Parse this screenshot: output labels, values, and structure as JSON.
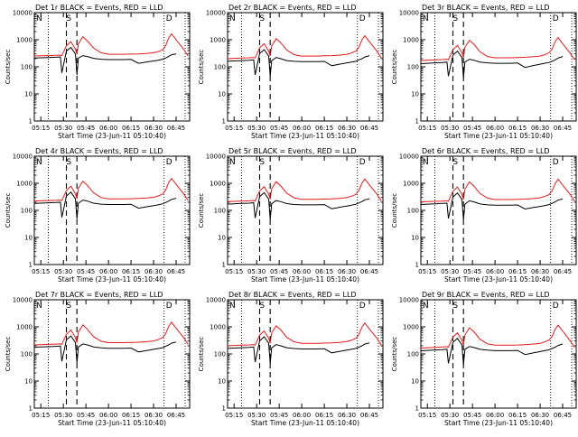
{
  "colors": {
    "events": "#000000",
    "lld": "#e41a1c",
    "axes": "#000000",
    "background": "#ffffff"
  },
  "common": {
    "xlabel": "Start Time (23-Jun-11 05:10:40)",
    "ylabel": "Counts/sec",
    "xticks": [
      "05:15",
      "05:30",
      "05:45",
      "06:00",
      "06:15",
      "06:30",
      "06:45"
    ],
    "yticks": [
      "1",
      "10",
      "100",
      "1000",
      "10000"
    ],
    "marker_S": "S",
    "marker_N": "N",
    "marker_D": "D"
  },
  "chart_data": [
    {
      "type": "line",
      "title": "Det 1r BLACK = Events, RED = LLD",
      "yscale": "log",
      "ylim": [
        1,
        10000
      ],
      "xlim": [
        "05:10:40",
        "06:54:00"
      ],
      "x": [
        "05:10",
        "05:15",
        "05:20",
        "05:25",
        "05:28",
        "05:29",
        "05:32",
        "05:35",
        "05:38",
        "05:39",
        "05:40",
        "05:43",
        "05:46",
        "05:50",
        "05:55",
        "06:00",
        "06:05",
        "06:10",
        "06:15",
        "06:20",
        "06:25",
        "06:30",
        "06:33",
        "06:36",
        "06:38",
        "06:40",
        "06:42",
        "06:45",
        "06:50",
        "06:53"
      ],
      "series": [
        {
          "name": "BLACK = Events",
          "values": [
            210,
            215,
            220,
            225,
            230,
            60,
            380,
            520,
            300,
            50,
            210,
            260,
            240,
            205,
            190,
            185,
            185,
            185,
            188,
            135,
            150,
            165,
            175,
            190,
            210,
            240,
            280,
            300,
            null,
            null
          ]
        },
        {
          "name": "RED = LLD",
          "values": [
            250,
            255,
            260,
            265,
            270,
            260,
            600,
            850,
            450,
            300,
            700,
            1300,
            900,
            500,
            330,
            290,
            290,
            290,
            295,
            300,
            310,
            330,
            360,
            420,
            600,
            1150,
            1650,
            1000,
            450,
            250
          ]
        }
      ],
      "vlines_dotted": [
        "05:20",
        "06:37",
        "06:51"
      ],
      "vlines_dashed": [
        "05:32",
        "05:39"
      ]
    },
    {
      "type": "line",
      "title": "Det 2r BLACK = Events, RED = LLD",
      "yscale": "log",
      "ylim": [
        1,
        10000
      ],
      "xlim": [
        "05:10:40",
        "06:54:00"
      ],
      "x": [
        "05:10",
        "05:15",
        "05:20",
        "05:25",
        "05:28",
        "05:29",
        "05:32",
        "05:35",
        "05:38",
        "05:39",
        "05:40",
        "05:43",
        "05:46",
        "05:50",
        "05:55",
        "06:00",
        "06:05",
        "06:10",
        "06:15",
        "06:20",
        "06:25",
        "06:30",
        "06:33",
        "06:36",
        "06:38",
        "06:40",
        "06:42",
        "06:45",
        "06:50",
        "06:53"
      ],
      "series": [
        {
          "name": "BLACK = Events",
          "values": [
            160,
            165,
            170,
            175,
            180,
            50,
            310,
            430,
            250,
            45,
            170,
            220,
            200,
            170,
            160,
            155,
            155,
            155,
            158,
            110,
            125,
            140,
            150,
            160,
            180,
            200,
            230,
            260,
            null,
            null
          ]
        },
        {
          "name": "RED = LLD",
          "values": [
            200,
            205,
            210,
            215,
            220,
            210,
            500,
            720,
            380,
            250,
            600,
            1100,
            780,
            420,
            280,
            250,
            250,
            250,
            255,
            260,
            270,
            290,
            320,
            380,
            520,
            980,
            1400,
            850,
            380,
            210
          ]
        }
      ],
      "vlines_dotted": [
        "05:20",
        "06:37",
        "06:51"
      ],
      "vlines_dashed": [
        "05:32",
        "05:39"
      ]
    },
    {
      "type": "line",
      "title": "Det 3r BLACK = Events, RED = LLD",
      "yscale": "log",
      "ylim": [
        1,
        10000
      ],
      "xlim": [
        "05:10:40",
        "06:54:00"
      ],
      "x": [
        "05:10",
        "05:15",
        "05:20",
        "05:25",
        "05:28",
        "05:29",
        "05:32",
        "05:35",
        "05:38",
        "05:39",
        "05:40",
        "05:43",
        "05:46",
        "05:50",
        "05:55",
        "06:00",
        "06:05",
        "06:10",
        "06:15",
        "06:20",
        "06:25",
        "06:30",
        "06:33",
        "06:36",
        "06:38",
        "06:40",
        "06:42",
        "06:45",
        "06:50",
        "06:53"
      ],
      "series": [
        {
          "name": "BLACK = Events",
          "values": [
            130,
            135,
            140,
            145,
            150,
            45,
            270,
            380,
            220,
            40,
            150,
            190,
            175,
            150,
            140,
            135,
            135,
            135,
            138,
            95,
            110,
            125,
            135,
            145,
            160,
            180,
            210,
            240,
            null,
            null
          ]
        },
        {
          "name": "RED = LLD",
          "values": [
            170,
            175,
            180,
            185,
            190,
            180,
            430,
            620,
            330,
            220,
            520,
            950,
            680,
            360,
            240,
            215,
            215,
            215,
            220,
            225,
            235,
            250,
            280,
            330,
            450,
            850,
            1200,
            720,
            320,
            180
          ]
        }
      ],
      "vlines_dotted": [
        "05:20",
        "06:37",
        "06:51"
      ],
      "vlines_dashed": [
        "05:32",
        "05:39"
      ]
    },
    {
      "type": "line",
      "title": "Det 4r BLACK = Events, RED = LLD",
      "yscale": "log",
      "ylim": [
        1,
        10000
      ],
      "xlim": [
        "05:10:40",
        "06:54:00"
      ],
      "x": [
        "05:10",
        "05:15",
        "05:20",
        "05:25",
        "05:28",
        "05:29",
        "05:32",
        "05:35",
        "05:38",
        "05:39",
        "05:40",
        "05:43",
        "05:46",
        "05:50",
        "05:55",
        "06:00",
        "06:05",
        "06:10",
        "06:15",
        "06:20",
        "06:25",
        "06:30",
        "06:33",
        "06:36",
        "06:38",
        "06:40",
        "06:42",
        "06:45",
        "06:50",
        "06:53"
      ],
      "series": [
        {
          "name": "BLACK = Events",
          "values": [
            180,
            185,
            190,
            195,
            200,
            55,
            340,
            470,
            270,
            48,
            185,
            240,
            220,
            185,
            170,
            165,
            165,
            165,
            168,
            120,
            135,
            150,
            160,
            175,
            195,
            220,
            255,
            280,
            null,
            null
          ]
        },
        {
          "name": "RED = LLD",
          "values": [
            220,
            225,
            230,
            235,
            240,
            230,
            540,
            780,
            410,
            270,
            650,
            1200,
            830,
            450,
            300,
            265,
            265,
            265,
            270,
            275,
            285,
            305,
            340,
            400,
            560,
            1050,
            1500,
            920,
            410,
            230
          ]
        }
      ],
      "vlines_dotted": [
        "05:20",
        "06:37",
        "06:51"
      ],
      "vlines_dashed": [
        "05:32",
        "05:39"
      ]
    },
    {
      "type": "line",
      "title": "Det 5r BLACK = Events, RED = LLD",
      "yscale": "log",
      "ylim": [
        1,
        10000
      ],
      "xlim": [
        "05:10:40",
        "06:54:00"
      ],
      "x": [
        "05:10",
        "05:15",
        "05:20",
        "05:25",
        "05:28",
        "05:29",
        "05:32",
        "05:35",
        "05:38",
        "05:39",
        "05:40",
        "05:43",
        "05:46",
        "05:50",
        "05:55",
        "06:00",
        "06:05",
        "06:10",
        "06:15",
        "06:20",
        "06:25",
        "06:30",
        "06:33",
        "06:36",
        "06:38",
        "06:40",
        "06:42",
        "06:45",
        "06:50",
        "06:53"
      ],
      "series": [
        {
          "name": "BLACK = Events",
          "values": [
            170,
            175,
            180,
            185,
            190,
            52,
            320,
            450,
            260,
            46,
            175,
            230,
            210,
            178,
            165,
            160,
            160,
            160,
            163,
            115,
            130,
            145,
            155,
            168,
            188,
            210,
            245,
            270,
            null,
            null
          ]
        },
        {
          "name": "RED = LLD",
          "values": [
            210,
            215,
            220,
            225,
            230,
            220,
            520,
            750,
            400,
            260,
            630,
            1150,
            800,
            430,
            290,
            258,
            258,
            258,
            262,
            268,
            278,
            298,
            330,
            390,
            540,
            1000,
            1450,
            880,
            400,
            220
          ]
        }
      ],
      "vlines_dotted": [
        "05:20",
        "06:37",
        "06:51"
      ],
      "vlines_dashed": [
        "05:32",
        "05:39"
      ]
    },
    {
      "type": "line",
      "title": "Det 6r BLACK = Events, RED = LLD",
      "yscale": "log",
      "ylim": [
        1,
        10000
      ],
      "xlim": [
        "05:10:40",
        "06:54:00"
      ],
      "x": [
        "05:10",
        "05:15",
        "05:20",
        "05:25",
        "05:28",
        "05:29",
        "05:32",
        "05:35",
        "05:38",
        "05:39",
        "05:40",
        "05:43",
        "05:46",
        "05:50",
        "05:55",
        "06:00",
        "06:05",
        "06:10",
        "06:15",
        "06:20",
        "06:25",
        "06:30",
        "06:33",
        "06:36",
        "06:38",
        "06:40",
        "06:42",
        "06:45",
        "06:50",
        "06:53"
      ],
      "series": [
        {
          "name": "BLACK = Events",
          "values": [
            165,
            170,
            175,
            180,
            185,
            50,
            310,
            440,
            255,
            45,
            170,
            225,
            205,
            172,
            160,
            155,
            155,
            155,
            158,
            112,
            126,
            140,
            150,
            163,
            182,
            205,
            240,
            265,
            null,
            null
          ]
        },
        {
          "name": "RED = LLD",
          "values": [
            205,
            210,
            215,
            220,
            225,
            215,
            510,
            730,
            390,
            255,
            610,
            1120,
            790,
            420,
            285,
            252,
            252,
            252,
            256,
            262,
            272,
            292,
            325,
            380,
            530,
            980,
            1420,
            860,
            390,
            215
          ]
        }
      ],
      "vlines_dotted": [
        "05:20",
        "06:37",
        "06:51"
      ],
      "vlines_dashed": [
        "05:32",
        "05:39"
      ]
    },
    {
      "type": "line",
      "title": "Det 7r BLACK = Events, RED = LLD",
      "yscale": "log",
      "ylim": [
        1,
        10000
      ],
      "xlim": [
        "05:10:40",
        "06:54:00"
      ],
      "x": [
        "05:10",
        "05:15",
        "05:20",
        "05:25",
        "05:28",
        "05:29",
        "05:32",
        "05:35",
        "05:38",
        "05:39",
        "05:40",
        "05:43",
        "05:46",
        "05:50",
        "05:55",
        "06:00",
        "06:05",
        "06:10",
        "06:15",
        "06:20",
        "06:25",
        "06:30",
        "06:33",
        "06:36",
        "06:38",
        "06:40",
        "06:42",
        "06:45",
        "06:50",
        "06:53"
      ],
      "series": [
        {
          "name": "BLACK = Events",
          "values": [
            175,
            180,
            185,
            190,
            195,
            53,
            330,
            460,
            265,
            47,
            180,
            235,
            215,
            182,
            168,
            162,
            162,
            162,
            165,
            118,
            132,
            148,
            158,
            170,
            190,
            215,
            250,
            275,
            null,
            null
          ]
        },
        {
          "name": "RED = LLD",
          "values": [
            215,
            220,
            225,
            230,
            235,
            225,
            530,
            770,
            405,
            265,
            640,
            1180,
            810,
            440,
            295,
            262,
            262,
            262,
            266,
            272,
            282,
            302,
            335,
            395,
            550,
            1020,
            1480,
            900,
            405,
            225
          ]
        }
      ],
      "vlines_dotted": [
        "05:20",
        "06:37",
        "06:51"
      ],
      "vlines_dashed": [
        "05:32",
        "05:39"
      ]
    },
    {
      "type": "line",
      "title": "Det 8r BLACK = Events, RED = LLD",
      "yscale": "log",
      "ylim": [
        1,
        10000
      ],
      "xlim": [
        "05:10:40",
        "06:54:00"
      ],
      "x": [
        "05:10",
        "05:15",
        "05:20",
        "05:25",
        "05:28",
        "05:29",
        "05:32",
        "05:35",
        "05:38",
        "05:39",
        "05:40",
        "05:43",
        "05:46",
        "05:50",
        "05:55",
        "06:00",
        "06:05",
        "06:10",
        "06:15",
        "06:20",
        "06:25",
        "06:30",
        "06:33",
        "06:36",
        "06:38",
        "06:40",
        "06:42",
        "06:45",
        "06:50",
        "06:53"
      ],
      "series": [
        {
          "name": "BLACK = Events",
          "values": [
            160,
            165,
            170,
            175,
            180,
            50,
            305,
            430,
            250,
            45,
            168,
            220,
            200,
            170,
            158,
            152,
            152,
            152,
            155,
            110,
            124,
            138,
            148,
            160,
            178,
            200,
            232,
            258,
            null,
            null
          ]
        },
        {
          "name": "RED = LLD",
          "values": [
            200,
            205,
            210,
            215,
            220,
            210,
            495,
            710,
            380,
            250,
            595,
            1090,
            770,
            410,
            280,
            248,
            248,
            248,
            252,
            258,
            268,
            288,
            318,
            375,
            520,
            960,
            1380,
            840,
            380,
            210
          ]
        }
      ],
      "vlines_dotted": [
        "05:20",
        "06:37",
        "06:51"
      ],
      "vlines_dashed": [
        "05:32",
        "05:39"
      ]
    },
    {
      "type": "line",
      "title": "Det 9r BLACK = Events, RED = LLD",
      "yscale": "log",
      "ylim": [
        1,
        10000
      ],
      "xlim": [
        "05:10:40",
        "06:54:00"
      ],
      "x": [
        "05:10",
        "05:15",
        "05:20",
        "05:25",
        "05:28",
        "05:29",
        "05:32",
        "05:35",
        "05:38",
        "05:39",
        "05:40",
        "05:43",
        "05:46",
        "05:50",
        "05:55",
        "06:00",
        "06:05",
        "06:10",
        "06:15",
        "06:20",
        "06:25",
        "06:30",
        "06:33",
        "06:36",
        "06:38",
        "06:40",
        "06:42",
        "06:45",
        "06:50",
        "06:53"
      ],
      "series": [
        {
          "name": "BLACK = Events",
          "values": [
            130,
            135,
            140,
            145,
            150,
            45,
            265,
            375,
            215,
            40,
            148,
            188,
            172,
            148,
            138,
            132,
            132,
            132,
            135,
            95,
            108,
            122,
            132,
            142,
            158,
            178,
            205,
            235,
            null,
            null
          ]
        },
        {
          "name": "RED = LLD",
          "values": [
            165,
            170,
            175,
            180,
            185,
            178,
            420,
            600,
            320,
            215,
            500,
            920,
            660,
            350,
            235,
            210,
            210,
            210,
            214,
            220,
            230,
            245,
            275,
            325,
            440,
            820,
            1150,
            700,
            310,
            175
          ]
        }
      ],
      "vlines_dotted": [
        "05:20",
        "06:37",
        "06:51"
      ],
      "vlines_dashed": [
        "05:32",
        "05:39"
      ]
    }
  ]
}
